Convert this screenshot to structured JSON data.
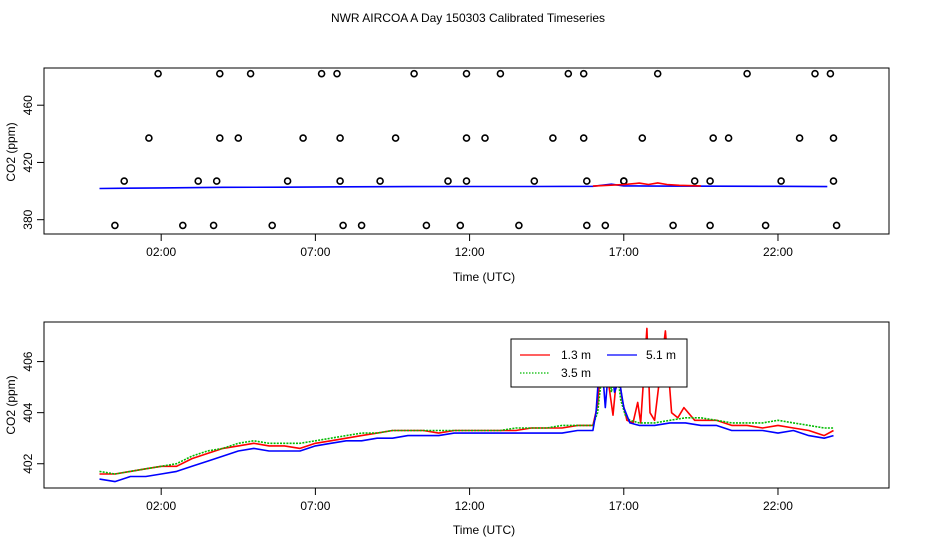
{
  "chart_data": [
    {
      "type": "scatter",
      "title": "NWR AIRCOA A  Day 150303  Calibrated Timeseries",
      "xlabel": "Time (UTC)",
      "ylabel": "CO2 (ppm)",
      "x_unit": "hours UTC",
      "xlim": [
        -1.8,
        25.6
      ],
      "ylim": [
        370,
        486
      ],
      "x_ticks": [
        {
          "value": 2,
          "label": "02:00"
        },
        {
          "value": 7,
          "label": "07:00"
        },
        {
          "value": 12,
          "label": "12:00"
        },
        {
          "value": 17,
          "label": "17:00"
        },
        {
          "value": 22,
          "label": "22:00"
        }
      ],
      "y_ticks": [
        {
          "value": 380,
          "label": "380"
        },
        {
          "value": 420,
          "label": "420"
        },
        {
          "value": 460,
          "label": "460"
        }
      ],
      "grid": false,
      "calibration_points": {
        "x": [
          0.5,
          0.8,
          1.6,
          1.9,
          2.7,
          3.2,
          3.7,
          3.8,
          3.9,
          3.9,
          4.5,
          4.9,
          5.6,
          6.1,
          6.6,
          7.2,
          7.7,
          7.8,
          7.8,
          7.9,
          8.5,
          9.1,
          9.6,
          10.2,
          10.6,
          11.3,
          11.7,
          11.9,
          11.9,
          11.9,
          12.5,
          13.0,
          13.6,
          14.1,
          14.7,
          15.2,
          15.7,
          15.7,
          15.8,
          15.8,
          16.4,
          17.0,
          17.0,
          17.6,
          18.1,
          18.6,
          19.3,
          19.8,
          19.8,
          19.9,
          20.4,
          21.0,
          21.6,
          22.1,
          22.7,
          23.2,
          23.7,
          23.8,
          23.8,
          23.9
        ],
        "y": [
          376,
          407,
          437,
          482,
          376,
          407,
          376,
          407,
          437,
          482,
          437,
          482,
          376,
          407,
          437,
          482,
          482,
          437,
          407,
          376,
          376,
          407,
          437,
          482,
          376,
          407,
          376,
          407,
          437,
          482,
          437,
          482,
          376,
          407,
          437,
          482,
          482,
          437,
          407,
          376,
          376,
          407,
          407,
          437,
          482,
          376,
          407,
          376,
          407,
          437,
          437,
          482,
          376,
          407,
          437,
          482,
          482,
          437,
          407,
          376
        ]
      },
      "series": [
        {
          "color": "#0000ff",
          "x": [
            0,
            2,
            4,
            6,
            8,
            10,
            12,
            14,
            16,
            16.6,
            17,
            18,
            20,
            22,
            23.6
          ],
          "y": [
            401.8,
            402.2,
            402.6,
            402.7,
            403.0,
            403.1,
            403.2,
            403.2,
            403.3,
            404.8,
            403.6,
            403.5,
            403.4,
            403.3,
            403.1
          ]
        },
        {
          "color": "#ff0000",
          "x": [
            16,
            17,
            17.5,
            17.8,
            18.1,
            18.4,
            18.8,
            19.5
          ],
          "y": [
            403.5,
            404.5,
            405.6,
            404.6,
            405.7,
            404.6,
            404.0,
            403.6
          ]
        }
      ]
    },
    {
      "type": "line",
      "xlabel": "Time (UTC)",
      "ylabel": "CO2 (ppm)",
      "x_unit": "hours UTC",
      "xlim": [
        -1.8,
        25.6
      ],
      "ylim": [
        401.05,
        407.55
      ],
      "x_ticks": [
        {
          "value": 2,
          "label": "02:00"
        },
        {
          "value": 7,
          "label": "07:00"
        },
        {
          "value": 12,
          "label": "12:00"
        },
        {
          "value": 17,
          "label": "17:00"
        },
        {
          "value": 22,
          "label": "22:00"
        }
      ],
      "y_ticks": [
        {
          "value": 402,
          "label": "402"
        },
        {
          "value": 404,
          "label": "404"
        },
        {
          "value": 406,
          "label": "406"
        }
      ],
      "grid": false,
      "legend": {
        "position": "top-right"
      },
      "series": [
        {
          "name": "1.3 m",
          "color": "#ff0000",
          "dash": "solid",
          "x": [
            0,
            0.5,
            1,
            1.5,
            2,
            2.5,
            3,
            3.5,
            4,
            4.5,
            5,
            5.5,
            6,
            6.5,
            7,
            7.5,
            8,
            8.5,
            9,
            9.5,
            10,
            10.5,
            11,
            11.5,
            12,
            12.5,
            13,
            13.5,
            14,
            14.5,
            15,
            15.5,
            16,
            16.15,
            16.3,
            16.5,
            16.65,
            16.8,
            16.95,
            17.1,
            17.3,
            17.45,
            17.55,
            17.75,
            17.85,
            18.0,
            18.15,
            18.35,
            18.55,
            18.75,
            18.95,
            19.3,
            19.6,
            20,
            20.5,
            21,
            21.5,
            22,
            22.5,
            23,
            23.5,
            23.8
          ],
          "y": [
            401.6,
            401.6,
            401.7,
            401.8,
            401.9,
            401.9,
            402.2,
            402.4,
            402.6,
            402.7,
            402.8,
            402.7,
            402.7,
            402.6,
            402.8,
            402.9,
            403.0,
            403.1,
            403.2,
            403.3,
            403.3,
            403.3,
            403.2,
            403.3,
            403.3,
            403.3,
            403.3,
            403.3,
            403.4,
            403.4,
            403.4,
            403.5,
            403.5,
            404.3,
            406.4,
            405.2,
            403.9,
            405.8,
            404.5,
            403.7,
            403.6,
            404.4,
            403.6,
            407.3,
            404.0,
            403.7,
            405.2,
            407.2,
            404.0,
            403.8,
            404.2,
            403.7,
            403.7,
            403.7,
            403.5,
            403.5,
            403.4,
            403.5,
            403.4,
            403.3,
            403.1,
            403.3
          ]
        },
        {
          "name": "3.5 m",
          "color": "#00bb00",
          "dash": "dotted",
          "x": [
            0,
            0.5,
            1,
            1.5,
            2,
            2.5,
            3,
            3.5,
            4,
            4.5,
            5,
            5.5,
            6,
            6.5,
            7,
            7.5,
            8,
            8.5,
            9,
            9.5,
            10,
            10.5,
            11,
            11.5,
            12,
            12.5,
            13,
            13.5,
            14,
            14.5,
            15,
            15.5,
            16,
            16.15,
            16.3,
            16.45,
            16.6,
            16.75,
            16.9,
            17.05,
            17.2,
            17.5,
            18,
            18.5,
            19,
            19.5,
            20,
            20.5,
            21,
            21.5,
            22,
            22.5,
            23,
            23.5,
            23.8
          ],
          "y": [
            401.7,
            401.6,
            401.7,
            401.8,
            401.9,
            402.0,
            402.3,
            402.5,
            402.6,
            402.8,
            402.9,
            402.8,
            402.8,
            402.8,
            402.9,
            403.0,
            403.1,
            403.2,
            403.2,
            403.3,
            403.3,
            403.3,
            403.3,
            403.3,
            403.3,
            403.3,
            403.3,
            403.4,
            403.4,
            403.4,
            403.5,
            403.5,
            403.5,
            404.0,
            405.6,
            406.9,
            404.8,
            406.0,
            404.5,
            403.9,
            403.7,
            403.6,
            403.6,
            403.7,
            403.8,
            403.8,
            403.7,
            403.6,
            403.6,
            403.6,
            403.7,
            403.6,
            403.5,
            403.4,
            403.4
          ]
        },
        {
          "name": "5.1 m",
          "color": "#0000ff",
          "dash": "solid",
          "x": [
            0,
            0.5,
            1,
            1.5,
            2,
            2.5,
            3,
            3.5,
            4,
            4.5,
            5,
            5.5,
            6,
            6.5,
            7,
            7.5,
            8,
            8.5,
            9,
            9.5,
            10,
            10.5,
            11,
            11.5,
            12,
            12.5,
            13,
            13.5,
            14,
            14.5,
            15,
            15.5,
            16,
            16.1,
            16.25,
            16.4,
            16.55,
            16.7,
            16.85,
            17.0,
            17.2,
            17.5,
            18,
            18.5,
            19,
            19.5,
            20,
            20.5,
            21,
            21.5,
            22,
            22.5,
            23,
            23.5,
            23.8
          ],
          "y": [
            401.4,
            401.3,
            401.5,
            401.5,
            401.6,
            401.7,
            401.9,
            402.1,
            402.3,
            402.5,
            402.6,
            402.5,
            402.5,
            402.5,
            402.7,
            402.8,
            402.9,
            402.9,
            403.0,
            403.0,
            403.1,
            403.1,
            403.1,
            403.2,
            403.2,
            403.2,
            403.2,
            403.2,
            403.2,
            403.2,
            403.2,
            403.3,
            403.3,
            404.0,
            406.6,
            404.2,
            406.4,
            404.8,
            405.3,
            404.2,
            403.6,
            403.5,
            403.5,
            403.6,
            403.6,
            403.5,
            403.5,
            403.3,
            403.3,
            403.3,
            403.2,
            403.3,
            403.1,
            403.0,
            403.1
          ]
        }
      ]
    }
  ]
}
